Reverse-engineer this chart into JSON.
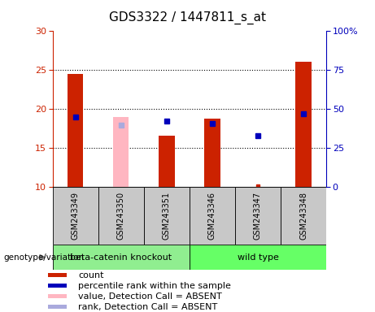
{
  "title": "GDS3322 / 1447811_s_at",
  "samples": [
    "GSM243349",
    "GSM243350",
    "GSM243351",
    "GSM243346",
    "GSM243347",
    "GSM243348"
  ],
  "red_bar_values": [
    24.5,
    null,
    16.6,
    18.8,
    null,
    26.1
  ],
  "pink_bar_values": [
    null,
    19.0,
    null,
    null,
    null,
    null
  ],
  "blue_dot_values": [
    19.0,
    null,
    18.5,
    18.2,
    16.6,
    19.4
  ],
  "light_blue_dot_values": [
    null,
    18.0,
    null,
    null,
    null,
    null
  ],
  "red_dot_small_values": [
    null,
    null,
    null,
    null,
    10.1,
    null
  ],
  "ylim": [
    10,
    30
  ],
  "y2lim": [
    0,
    100
  ],
  "yticks": [
    10,
    15,
    20,
    25,
    30
  ],
  "y2ticks": [
    0,
    25,
    50,
    75,
    100
  ],
  "y2ticklabels": [
    "0",
    "25",
    "50",
    "75",
    "100%"
  ],
  "dotted_lines": [
    15,
    20,
    25
  ],
  "group1_label": "beta-catenin knockout",
  "group2_label": "wild type",
  "group1_indices": [
    0,
    1,
    2
  ],
  "group2_indices": [
    3,
    4,
    5
  ],
  "group1_color": "#90EE90",
  "group2_color": "#66FF66",
  "bar_width": 0.35,
  "red_color": "#CC2200",
  "pink_color": "#FFB6C1",
  "blue_color": "#0000BB",
  "light_blue_color": "#AAAADD",
  "sample_box_color": "#C8C8C8",
  "legend_labels": [
    "count",
    "percentile rank within the sample",
    "value, Detection Call = ABSENT",
    "rank, Detection Call = ABSENT"
  ],
  "legend_colors": [
    "#CC2200",
    "#0000BB",
    "#FFB6C1",
    "#AAAADD"
  ],
  "title_fontsize": 11,
  "tick_fontsize": 8,
  "label_fontsize": 8,
  "legend_fontsize": 8
}
